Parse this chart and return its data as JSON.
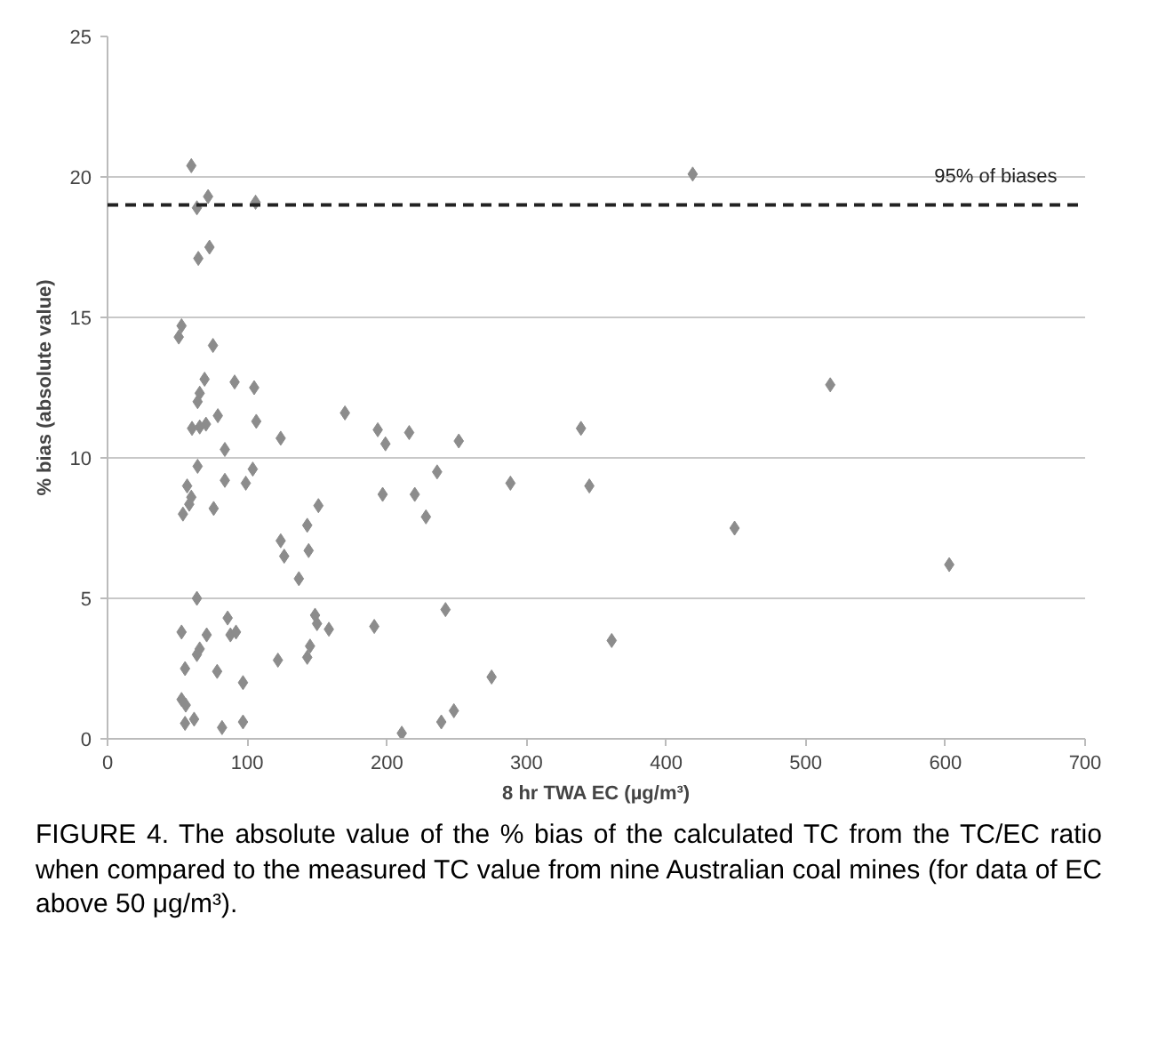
{
  "chart_data": {
    "type": "scatter",
    "xlabel": "8 hr TWA EC (µg/m³)",
    "ylabel": "% bias (absolute value)",
    "annotations": [
      "FIGURE 4.  The absolute value of the % bias of the calculated TC from the TC/EC ratio when compared to the measured TC value from nine Australian coal mines (for data of EC above 50 μg/m³)."
    ],
    "x": [
      60,
      64,
      72,
      65,
      73,
      106,
      53,
      51,
      75.5,
      69.5,
      66,
      64.5,
      91,
      105,
      79,
      70.5,
      66,
      60.5,
      106.5,
      124,
      84,
      64.5,
      104,
      84,
      99,
      57,
      60,
      58.5,
      54,
      76,
      151,
      143,
      124,
      126.5,
      144,
      137,
      64,
      86,
      53,
      71,
      88,
      92,
      148.6,
      150,
      158.5,
      191,
      66,
      64,
      55.5,
      78.5,
      97,
      122,
      145,
      143,
      53,
      56,
      55.5,
      62,
      82,
      97,
      170,
      193.5,
      199,
      197,
      216,
      251.5,
      339,
      236,
      220,
      228,
      288.5,
      345,
      449,
      242,
      361,
      275,
      248,
      239,
      210.7,
      419,
      517.5,
      602.7
    ],
    "values": [
      20.4,
      18.9,
      19.3,
      17.1,
      17.5,
      19.1,
      14.7,
      14.3,
      14.0,
      12.8,
      12.3,
      12.0,
      12.7,
      12.5,
      11.5,
      11.2,
      11.1,
      11.05,
      11.3,
      10.7,
      10.3,
      9.7,
      9.6,
      9.2,
      9.1,
      9.0,
      8.6,
      8.35,
      8.0,
      8.2,
      8.3,
      7.6,
      7.05,
      6.5,
      6.7,
      5.7,
      5.0,
      4.3,
      3.8,
      3.7,
      3.7,
      3.8,
      4.4,
      4.1,
      3.9,
      4.0,
      3.2,
      3.0,
      2.5,
      2.4,
      2.0,
      2.8,
      3.3,
      2.9,
      1.4,
      1.2,
      0.55,
      0.7,
      0.4,
      0.6,
      11.6,
      11.0,
      10.5,
      8.7,
      10.9,
      10.6,
      11.05,
      9.5,
      8.7,
      7.9,
      9.1,
      9.0,
      7.5,
      4.6,
      3.5,
      2.2,
      1.0,
      0.6,
      0.2,
      20.1,
      12.6,
      6.2
    ],
    "color": "#8c8c8c",
    "marker": "diamond",
    "xlim": [
      0,
      700
    ],
    "xticks": [
      0,
      100,
      200,
      300,
      400,
      500,
      600,
      700
    ],
    "ylim": [
      0,
      25
    ],
    "yticks": [
      0,
      5,
      10,
      15,
      20,
      25
    ],
    "grid": "y",
    "ref_lines": [
      {
        "axis": "y",
        "value": 19,
        "label": "95% of biases",
        "color": "#222222",
        "line_style": "dashed"
      }
    ]
  }
}
